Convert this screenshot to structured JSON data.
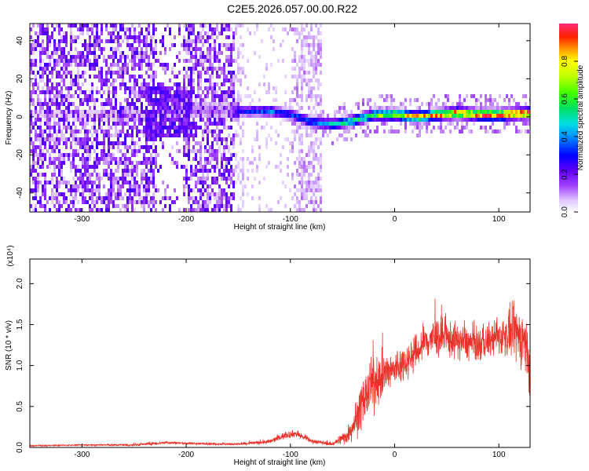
{
  "title": "C2E5.2026.057.00.00.R22",
  "spectrogram": {
    "xlabel": "Height of straight line (km)",
    "ylabel": "Frequency (Hz)",
    "xlim": [
      -350,
      130
    ],
    "ylim": [
      -50,
      49
    ],
    "xticks": [
      -300,
      -200,
      -100,
      0,
      100
    ],
    "yticks": [
      -40,
      -20,
      0,
      20,
      40
    ],
    "colorbar": {
      "label": "Normalized spectral amplitude",
      "range": [
        0,
        1
      ],
      "ticks": [
        "0.0",
        "0.2",
        "0.4",
        "0.6",
        "0.8"
      ]
    }
  },
  "chart_data": [
    {
      "type": "heatmap",
      "title": "C2E5.2026.057.00.00.R22",
      "xlabel": "Height of straight line (km)",
      "ylabel": "Frequency (Hz)",
      "xlim": [
        -350,
        130
      ],
      "ylim": [
        -50,
        49
      ],
      "colorbar_label": "Normalized spectral amplitude",
      "ridge": {
        "x": [
          -350,
          -240,
          -200,
          -160,
          -150,
          -120,
          -100,
          -80,
          -60,
          -40,
          -20,
          0,
          20,
          40,
          60,
          80,
          100,
          130
        ],
        "frequency": [
          0,
          0,
          3,
          2,
          2,
          2,
          0,
          -4,
          -5,
          -3,
          0,
          0,
          -1,
          0,
          1,
          0,
          0,
          1
        ],
        "amplitude": [
          0.05,
          0.08,
          0.12,
          0.1,
          0.3,
          0.4,
          0.35,
          0.4,
          0.5,
          0.6,
          0.7,
          0.8,
          0.85,
          0.9,
          0.95,
          0.95,
          1.0,
          1.0
        ]
      }
    },
    {
      "type": "line",
      "xlabel": "Height of straight line (km)",
      "ylabel": "SNR (10 * v/v)",
      "yscale_label": "(x10⁴)",
      "xlim": [
        -350,
        130
      ],
      "ylim": [
        0,
        2.3
      ],
      "xticks": [
        -300,
        -200,
        -100,
        0,
        100
      ],
      "yticks": [
        "0.0",
        "0.5",
        "1.0",
        "1.5",
        "2.0"
      ],
      "color": "#e8332a",
      "series": [
        {
          "name": "SNR",
          "x": [
            -350,
            -300,
            -250,
            -220,
            -200,
            -150,
            -120,
            -105,
            -95,
            -80,
            -60,
            -45,
            -35,
            -25,
            -15,
            0,
            10,
            20,
            30,
            40,
            60,
            80,
            100,
            115,
            125,
            130
          ],
          "y": [
            0.02,
            0.03,
            0.03,
            0.06,
            0.05,
            0.04,
            0.07,
            0.15,
            0.17,
            0.08,
            0.04,
            0.15,
            0.4,
            0.7,
            0.85,
            0.95,
            1.05,
            1.15,
            1.3,
            1.35,
            1.3,
            1.25,
            1.35,
            1.4,
            1.3,
            1.0
          ],
          "spread": [
            0.01,
            0.01,
            0.02,
            0.03,
            0.02,
            0.02,
            0.04,
            0.06,
            0.06,
            0.04,
            0.03,
            0.15,
            0.35,
            0.45,
            0.4,
            0.35,
            0.3,
            0.3,
            0.35,
            0.35,
            0.3,
            0.3,
            0.3,
            0.45,
            0.55,
            0.5
          ]
        }
      ]
    }
  ]
}
